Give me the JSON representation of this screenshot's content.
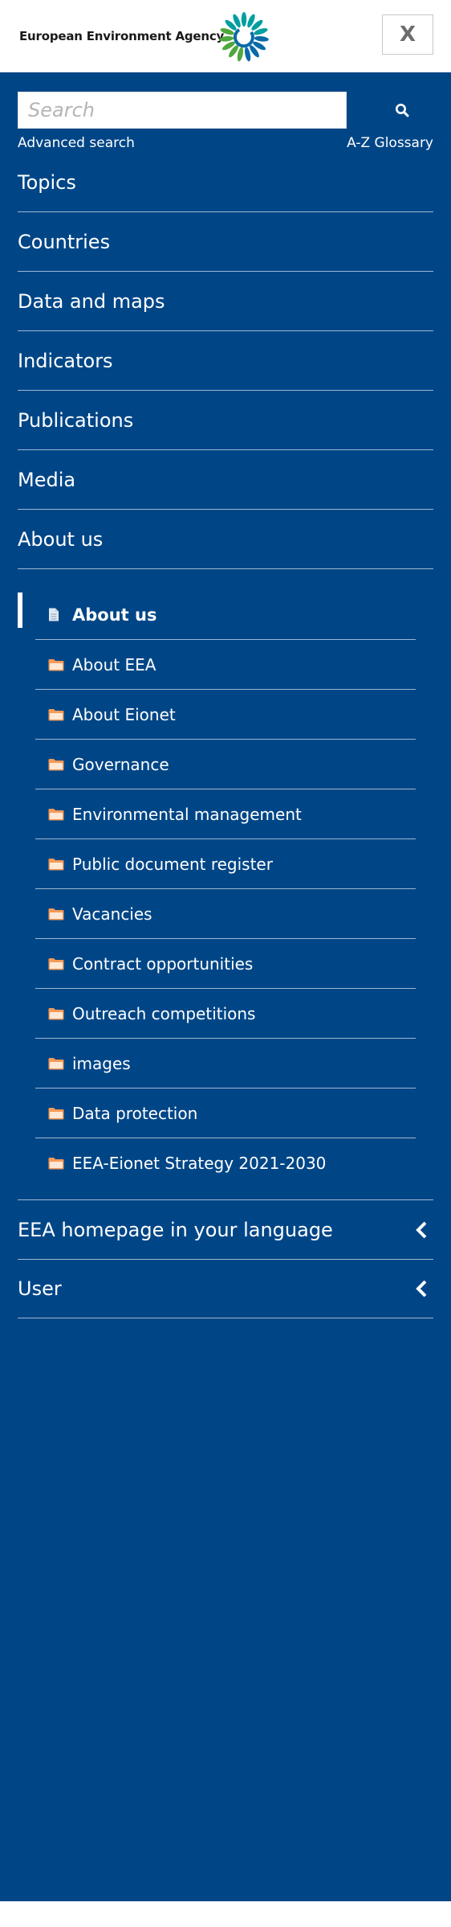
{
  "header": {
    "logo_text": "European Environment Agency",
    "close_label": "X",
    "brand_colors": {
      "logo_teal": "#009ea0",
      "logo_blue": "#0066a1",
      "logo_green": "#4fa83d"
    }
  },
  "search": {
    "placeholder": "Search",
    "value": "",
    "icon": "search-icon"
  },
  "links": {
    "advanced": "Advanced search",
    "glossary": "A-Z Glossary"
  },
  "nav": {
    "items": [
      {
        "label": "Topics"
      },
      {
        "label": "Countries"
      },
      {
        "label": "Data and maps"
      },
      {
        "label": "Indicators"
      },
      {
        "label": "Publications"
      },
      {
        "label": "Media"
      },
      {
        "label": "About us"
      }
    ]
  },
  "subnav": {
    "items": [
      {
        "label": "About us",
        "icon": "document-icon",
        "active": true
      },
      {
        "label": "About EEA",
        "icon": "folder-icon"
      },
      {
        "label": "About Eionet",
        "icon": "folder-icon"
      },
      {
        "label": "Governance",
        "icon": "folder-icon"
      },
      {
        "label": "Environmental management",
        "icon": "folder-icon"
      },
      {
        "label": "Public document register",
        "icon": "folder-icon"
      },
      {
        "label": "Vacancies",
        "icon": "folder-icon"
      },
      {
        "label": "Contract opportunities",
        "icon": "folder-icon"
      },
      {
        "label": "Outreach competitions",
        "icon": "folder-icon"
      },
      {
        "label": "images",
        "icon": "folder-icon"
      },
      {
        "label": "Data protection",
        "icon": "folder-icon"
      },
      {
        "label": "EEA-Eionet Strategy 2021-2030",
        "icon": "folder-icon"
      }
    ]
  },
  "bottom": {
    "items": [
      {
        "label": "EEA homepage in your language",
        "icon": "chevron-left-icon"
      },
      {
        "label": "User",
        "icon": "chevron-left-icon"
      }
    ]
  },
  "colors": {
    "panel_bg": "#004687",
    "divider": "#9fb7d0",
    "folder": "#f59a57"
  }
}
